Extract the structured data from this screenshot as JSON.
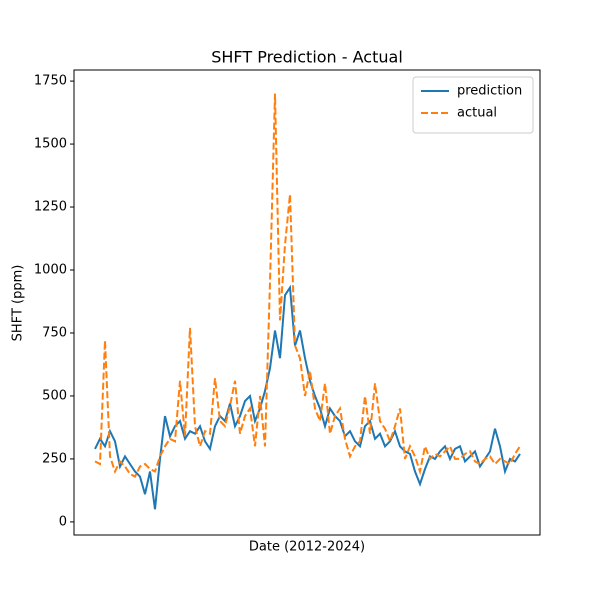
{
  "chart_data": {
    "type": "line",
    "title": "SHFT Prediction - Actual",
    "xlabel": "Date (2012-2024)",
    "ylabel": "SHFT (ppm)",
    "ylim": [
      -52,
      1794
    ],
    "yticks": [
      0,
      250,
      500,
      750,
      1000,
      1250,
      1500,
      1750
    ],
    "legend": "upper right",
    "series": [
      {
        "name": "prediction",
        "color": "#1f77b4",
        "linestyle": "solid",
        "values": [
          290,
          330,
          300,
          360,
          320,
          220,
          260,
          230,
          200,
          180,
          110,
          200,
          50,
          250,
          420,
          340,
          380,
          400,
          330,
          360,
          350,
          380,
          320,
          290,
          380,
          420,
          400,
          470,
          380,
          420,
          480,
          500,
          400,
          450,
          520,
          610,
          760,
          650,
          900,
          930,
          700,
          760,
          650,
          560,
          500,
          450,
          380,
          450,
          420,
          400,
          340,
          360,
          320,
          300,
          380,
          400,
          330,
          350,
          300,
          320,
          360,
          300,
          280,
          270,
          200,
          150,
          210,
          260,
          250,
          280,
          300,
          250,
          290,
          300,
          240,
          260,
          280,
          220,
          250,
          280,
          370,
          300,
          200,
          250,
          240,
          270
        ]
      },
      {
        "name": "actual",
        "color": "#ff7f0e",
        "linestyle": "dashed",
        "values": [
          240,
          230,
          720,
          260,
          200,
          240,
          220,
          190,
          180,
          220,
          230,
          210,
          200,
          260,
          300,
          330,
          320,
          560,
          340,
          770,
          380,
          300,
          360,
          350,
          570,
          400,
          380,
          460,
          560,
          350,
          420,
          450,
          300,
          500,
          300,
          950,
          1700,
          800,
          1100,
          1300,
          700,
          650,
          500,
          600,
          450,
          400,
          550,
          350,
          420,
          450,
          330,
          260,
          300,
          320,
          500,
          350,
          550,
          400,
          370,
          320,
          380,
          450,
          250,
          300,
          260,
          200,
          300,
          250,
          270,
          260,
          280,
          300,
          250,
          250,
          270,
          280,
          240,
          230,
          250,
          260,
          230,
          250,
          240,
          230,
          270,
          300
        ]
      }
    ]
  }
}
